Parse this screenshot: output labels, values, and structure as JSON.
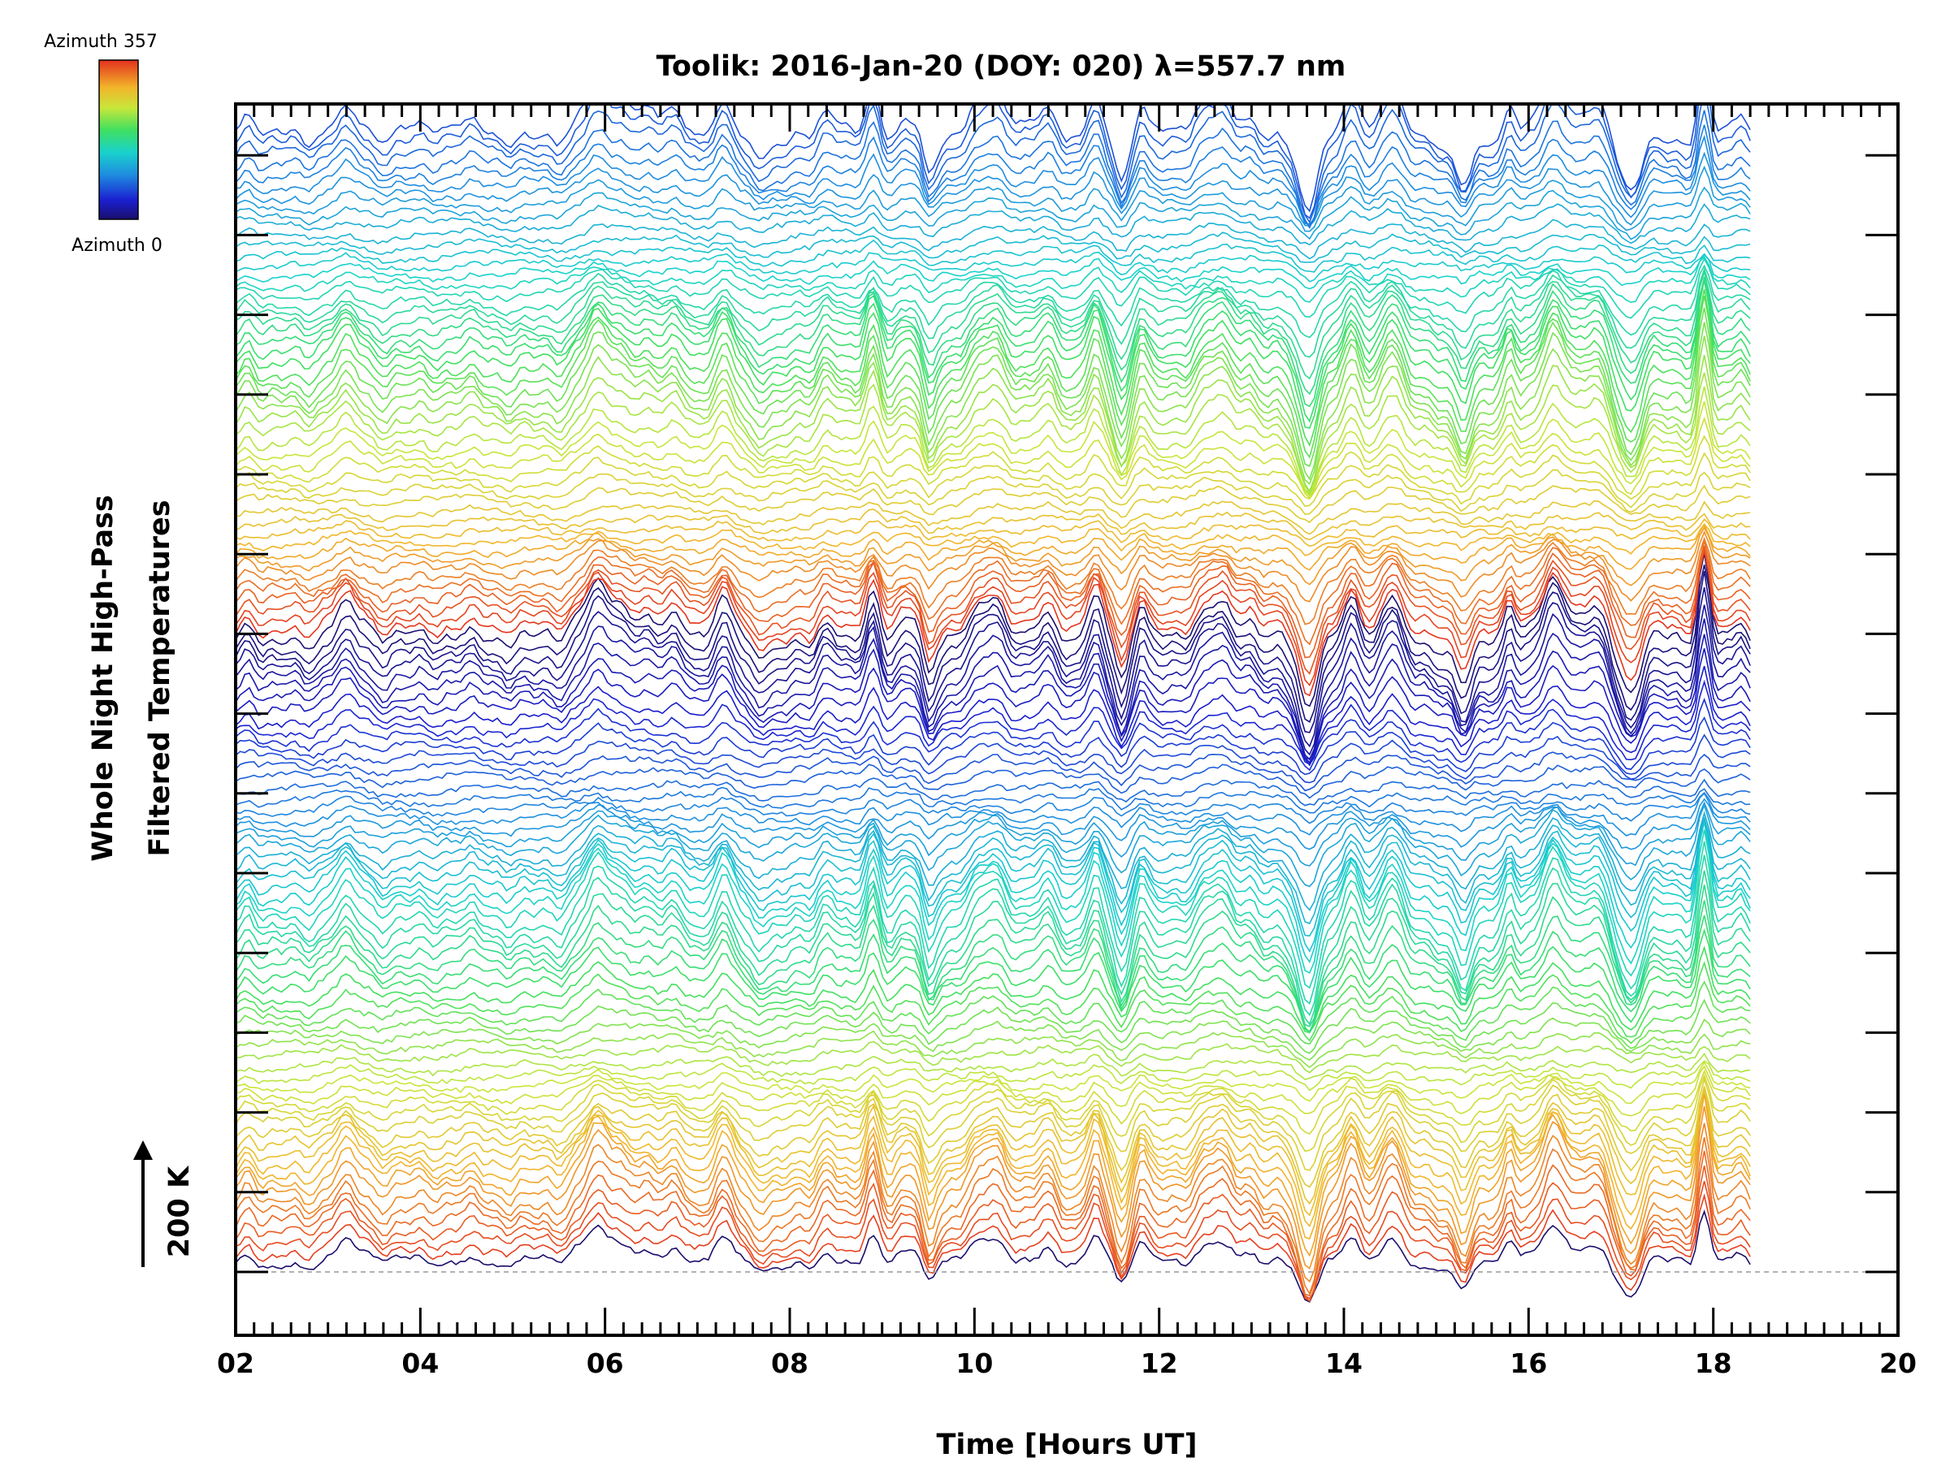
{
  "chart_data": {
    "type": "line",
    "title": "Toolik: 2016-Jan-20 (DOY: 020) λ=557.7 nm",
    "xlabel": "Time [Hours UT]",
    "ylabel_line1": "Whole Night High-Pass",
    "ylabel_line2": "Filtered Temperatures",
    "scale_label": "200 K",
    "scale_value_K": 200,
    "xlim": [
      2,
      20
    ],
    "xticks": [
      "02",
      "04",
      "06",
      "08",
      "10",
      "12",
      "14",
      "16",
      "18",
      "20"
    ],
    "data_range_hours": [
      2.0,
      18.4
    ],
    "colorbar": {
      "max_label": "Azimuth 357",
      "min_label": "Azimuth 0",
      "azimuth_min_deg": 0,
      "azimuth_max_deg": 357
    },
    "series_count": 115,
    "note": "Stacked high-pass filtered temperature traces, one per azimuth; each trace offset vertically and coloured by azimuth (blue=0 to red=357)."
  },
  "colors": {
    "axis": "#000000",
    "baseline": "#999999"
  }
}
